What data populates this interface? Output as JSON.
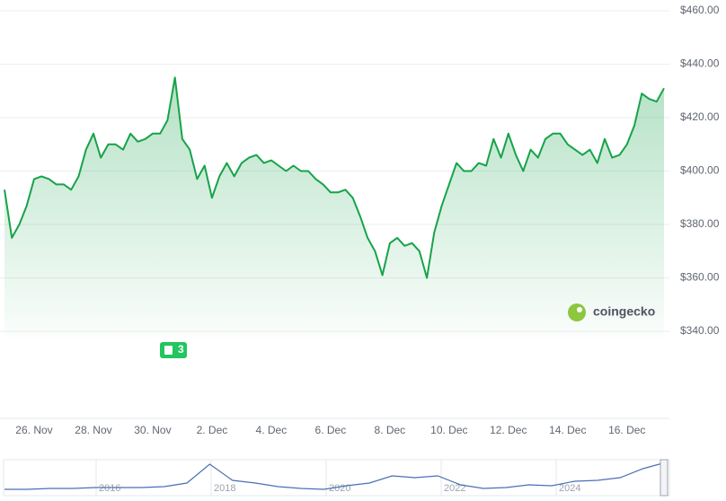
{
  "chart_data": {
    "type": "line",
    "categories": [
      null,
      null,
      null,
      null,
      "26. Nov",
      null,
      null,
      null,
      null,
      null,
      null,
      null,
      "28. Nov",
      null,
      null,
      null,
      null,
      null,
      null,
      null,
      "30. Nov",
      null,
      null,
      null,
      null,
      null,
      null,
      null,
      "2. Dec",
      null,
      null,
      null,
      null,
      null,
      null,
      null,
      "4. Dec",
      null,
      null,
      null,
      null,
      null,
      null,
      null,
      "6. Dec",
      null,
      null,
      null,
      null,
      null,
      null,
      null,
      "8. Dec",
      null,
      null,
      null,
      null,
      null,
      null,
      null,
      "10. Dec",
      null,
      null,
      null,
      null,
      null,
      null,
      null,
      "12. Dec",
      null,
      null,
      null,
      null,
      null,
      null,
      null,
      "14. Dec",
      null,
      null,
      null,
      null,
      null,
      null,
      null,
      "16. Dec",
      null,
      null,
      null,
      null,
      null
    ],
    "series": [
      {
        "color": "#16a34a",
        "values": [
          393,
          375,
          380,
          387,
          397,
          398,
          397,
          395,
          395,
          393,
          398,
          408,
          414,
          405,
          410,
          410,
          408,
          414,
          411,
          412,
          414,
          414,
          419,
          435,
          412,
          408,
          397,
          402,
          390,
          398,
          403,
          398,
          403,
          405,
          406,
          403,
          404,
          402,
          400,
          402,
          400,
          400,
          397,
          395,
          392,
          392,
          393,
          390,
          383,
          375,
          370,
          361,
          373,
          375,
          372,
          373,
          370,
          360,
          377,
          387,
          395,
          403,
          400,
          400,
          403,
          402,
          412,
          405,
          414,
          406,
          400,
          408,
          405,
          412,
          414,
          414,
          410,
          408,
          406,
          408,
          403,
          412,
          405,
          406,
          410,
          417,
          429,
          427,
          426,
          431
        ]
      }
    ],
    "ylim": [
      340,
      460
    ],
    "yticks": [
      {
        "value": 340,
        "label": "$340.00"
      },
      {
        "value": 360,
        "label": "$360.00"
      },
      {
        "value": 380,
        "label": "$380.00"
      },
      {
        "value": 400,
        "label": "$400.00"
      },
      {
        "value": 420,
        "label": "$420.00"
      },
      {
        "value": 440,
        "label": "$440.00"
      },
      {
        "value": 460,
        "label": "$460.00"
      }
    ],
    "grid": true
  },
  "watermark": "coingecko",
  "news_badge": "3",
  "navigator": {
    "years": [
      "2016",
      "2018",
      "2020",
      "2022",
      "2024"
    ],
    "values": [
      66,
      66,
      79,
      79,
      92,
      92,
      92,
      105,
      158,
      434,
      197,
      158,
      105,
      79,
      66,
      118,
      158,
      263,
      237,
      263,
      132,
      79,
      92,
      132,
      118,
      184,
      197,
      237,
      368,
      461
    ],
    "ylim": [
      0,
      500
    ],
    "color": "#4a6fb5"
  }
}
